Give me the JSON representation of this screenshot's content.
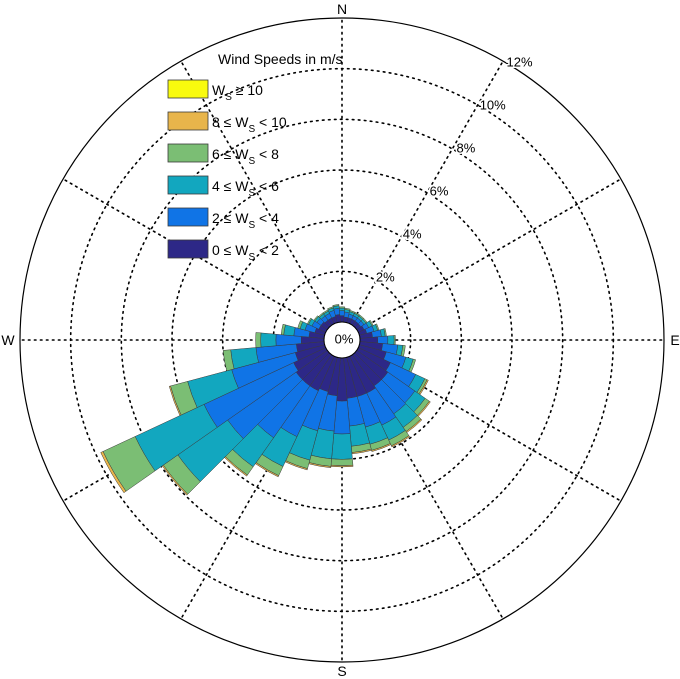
{
  "chart_data": {
    "type": "wind-rose",
    "title": "",
    "legend": {
      "title": "Wind Speeds in m/s",
      "placement": "top-left",
      "entries": [
        {
          "lead": "W",
          "sub": "S",
          "tail": " ≥ 10",
          "color": "#f9fb0e"
        },
        {
          "lead": "8 ≤ W",
          "sub": "S",
          "tail": " < 10",
          "color": "#e8b54b"
        },
        {
          "lead": "6 ≤ W",
          "sub": "S",
          "tail": " < 8",
          "color": "#7bbe74"
        },
        {
          "lead": "4 ≤ W",
          "sub": "S",
          "tail": " < 6",
          "color": "#12a7bf"
        },
        {
          "lead": "2 ≤ W",
          "sub": "S",
          "tail": " < 4",
          "color": "#1074e6"
        },
        {
          "lead": "0 ≤ W",
          "sub": "S",
          "tail": " < 2",
          "color": "#2d2887"
        }
      ]
    },
    "compass_labels": {
      "N": "N",
      "E": "E",
      "S": "S",
      "W": "W"
    },
    "radial_axis": {
      "unit": "%",
      "range": [
        0,
        12
      ],
      "rings": [
        2,
        4,
        6,
        8,
        10,
        12
      ],
      "ring_labels": [
        "2%",
        "4%",
        "6%",
        "8%",
        "10%",
        "12%"
      ],
      "center_label": "0%",
      "grid": true
    },
    "speed_bins": [
      "0-2",
      "2-4",
      "4-6",
      "6-8",
      "8-10",
      ">=10"
    ],
    "direction_bin_width_deg": 10,
    "directions_deg": [
      0,
      10,
      20,
      30,
      40,
      50,
      60,
      70,
      80,
      90,
      100,
      110,
      120,
      130,
      140,
      150,
      160,
      170,
      180,
      190,
      200,
      210,
      220,
      230,
      240,
      250,
      260,
      270,
      280,
      290,
      300,
      310,
      320,
      330,
      340,
      350
    ],
    "cumulative_percent": [
      [
        0.25,
        0.45,
        0.55,
        0.6,
        0.6,
        0.6
      ],
      [
        0.2,
        0.4,
        0.5,
        0.55,
        0.55,
        0.55
      ],
      [
        0.2,
        0.35,
        0.45,
        0.5,
        0.5,
        0.5
      ],
      [
        0.2,
        0.35,
        0.45,
        0.5,
        0.5,
        0.5
      ],
      [
        0.2,
        0.35,
        0.45,
        0.5,
        0.5,
        0.5
      ],
      [
        0.2,
        0.35,
        0.45,
        0.5,
        0.5,
        0.5
      ],
      [
        0.25,
        0.45,
        0.6,
        0.65,
        0.65,
        0.65
      ],
      [
        0.3,
        0.6,
        0.75,
        0.8,
        0.8,
        0.8
      ],
      [
        0.5,
        0.85,
        1.0,
        1.05,
        1.05,
        1.05
      ],
      [
        0.7,
        1.1,
        1.35,
        1.4,
        1.4,
        1.4
      ],
      [
        0.9,
        1.5,
        1.7,
        1.8,
        1.8,
        1.8
      ],
      [
        1.1,
        1.9,
        2.2,
        2.3,
        2.3,
        2.3
      ],
      [
        1.4,
        2.5,
        2.9,
        3.0,
        3.05,
        3.05
      ],
      [
        1.5,
        2.8,
        3.3,
        3.5,
        3.55,
        3.55
      ],
      [
        1.5,
        2.85,
        3.5,
        3.7,
        3.75,
        3.75
      ],
      [
        1.6,
        3.0,
        3.65,
        3.9,
        3.95,
        3.95
      ],
      [
        1.6,
        2.85,
        3.55,
        3.8,
        3.85,
        3.85
      ],
      [
        1.6,
        2.7,
        3.5,
        3.75,
        3.8,
        3.8
      ],
      [
        1.7,
        3.0,
        4.0,
        4.25,
        4.3,
        4.3
      ],
      [
        1.5,
        2.9,
        4.0,
        4.3,
        4.35,
        4.35
      ],
      [
        1.4,
        3.0,
        4.2,
        4.55,
        4.6,
        4.6
      ],
      [
        1.5,
        3.5,
        4.8,
        5.2,
        5.25,
        5.25
      ],
      [
        1.5,
        4.0,
        5.4,
        5.8,
        5.85,
        5.85
      ],
      [
        1.5,
        4.8,
        7.2,
        7.9,
        7.95,
        7.95
      ],
      [
        1.4,
        5.3,
        8.3,
        9.7,
        9.8,
        9.8
      ],
      [
        1.2,
        3.8,
        5.6,
        6.3,
        6.35,
        6.35
      ],
      [
        1.1,
        2.7,
        3.7,
        4.0,
        4.0,
        4.0
      ],
      [
        0.9,
        1.9,
        2.5,
        2.7,
        2.7,
        2.7
      ],
      [
        0.6,
        1.2,
        1.6,
        1.7,
        1.7,
        1.7
      ],
      [
        0.4,
        0.8,
        1.0,
        1.1,
        1.1,
        1.1
      ],
      [
        0.3,
        0.6,
        0.75,
        0.8,
        0.8,
        0.8
      ],
      [
        0.3,
        0.5,
        0.6,
        0.65,
        0.65,
        0.65
      ],
      [
        0.25,
        0.45,
        0.55,
        0.6,
        0.6,
        0.6
      ],
      [
        0.25,
        0.45,
        0.55,
        0.6,
        0.6,
        0.6
      ],
      [
        0.25,
        0.5,
        0.6,
        0.65,
        0.65,
        0.65
      ],
      [
        0.3,
        0.55,
        0.65,
        0.7,
        0.7,
        0.7
      ]
    ]
  }
}
